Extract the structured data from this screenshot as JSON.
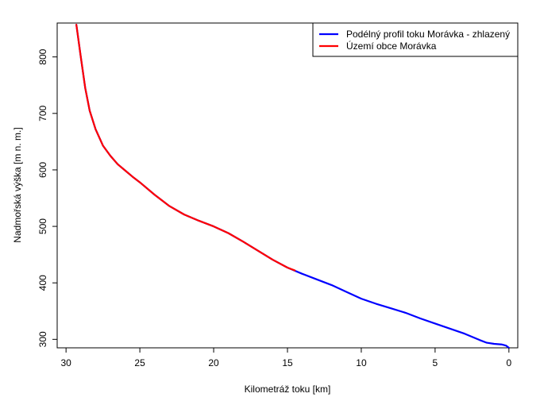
{
  "chart_data": {
    "type": "line",
    "xlabel": "Kilometráž toku [km]",
    "ylabel": "Nadmořská výška [m n. m.]",
    "xlim": [
      30.6,
      -0.6
    ],
    "ylim": [
      285,
      860
    ],
    "x_reversed": true,
    "xticks": [
      30,
      25,
      20,
      15,
      10,
      5,
      0
    ],
    "yticks": [
      300,
      400,
      500,
      600,
      700,
      800
    ],
    "legend_position": "top-right",
    "series": [
      {
        "name": "Podélný profil toku Morávka - zhlazený",
        "color": "#0000ff",
        "x": [
          29.3,
          29.0,
          28.7,
          28.4,
          28.0,
          27.5,
          27.0,
          26.5,
          26.0,
          25.5,
          25.0,
          24.0,
          23.0,
          22.0,
          21.0,
          20.0,
          19.0,
          18.0,
          17.0,
          16.0,
          15.0,
          14.0,
          13.0,
          12.0,
          11.0,
          10.0,
          9.0,
          8.0,
          7.0,
          6.0,
          5.0,
          4.0,
          3.0,
          2.0,
          1.5,
          1.0,
          0.5,
          0.2,
          0.0
        ],
        "y": [
          857,
          800,
          745,
          705,
          672,
          643,
          625,
          610,
          599,
          588,
          578,
          556,
          536,
          521,
          510,
          500,
          488,
          473,
          457,
          441,
          427,
          416,
          406,
          396,
          384,
          372,
          363,
          355,
          347,
          337,
          328,
          319,
          310,
          299,
          294,
          292,
          291,
          289,
          285
        ]
      },
      {
        "name": "Území obce Morávka",
        "color": "#ff0000",
        "x": [
          29.3,
          29.0,
          28.7,
          28.4,
          28.0,
          27.5,
          27.0,
          26.5,
          26.0,
          25.5,
          25.0,
          24.0,
          23.0,
          22.0,
          21.0,
          20.0,
          19.0,
          18.0,
          17.0,
          16.0,
          15.0,
          14.5
        ],
        "y": [
          857,
          800,
          745,
          705,
          672,
          643,
          625,
          610,
          599,
          588,
          578,
          556,
          536,
          521,
          510,
          500,
          488,
          473,
          457,
          441,
          427,
          422
        ]
      }
    ]
  }
}
